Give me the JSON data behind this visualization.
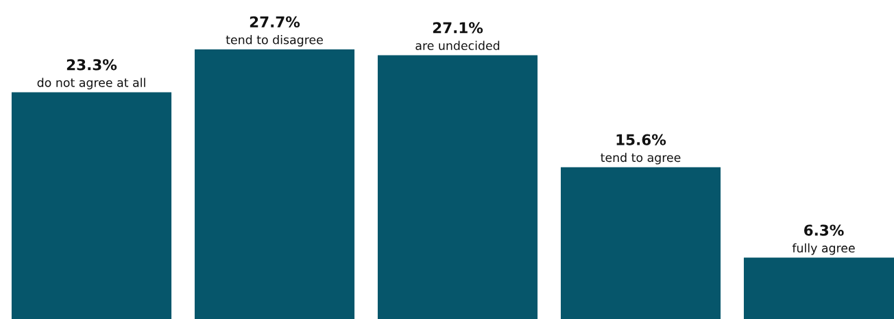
{
  "chart_data": {
    "type": "bar",
    "categories": [
      "do not agree at all",
      "tend to disagree",
      "are undecided",
      "tend to agree",
      "fully agree"
    ],
    "values": [
      23.3,
      27.7,
      27.1,
      15.6,
      6.3
    ],
    "value_labels": [
      "23.3%",
      "27.7%",
      "27.1%",
      "15.6%",
      "6.3%"
    ],
    "color": "#06566b"
  }
}
